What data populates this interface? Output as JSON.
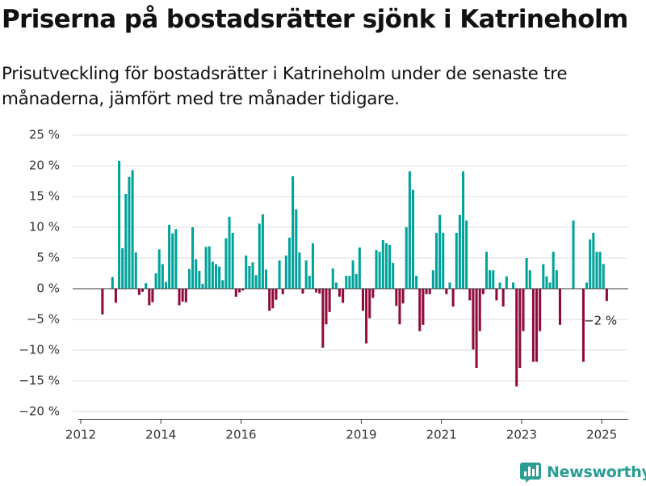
{
  "page": {
    "title": "Priserna på bostadsrätter sjönk i Katrineholm",
    "subtitle": "Prisutveckling för bostadsrätter i Katrineholm under de senaste tre månaderna, jämfört med tre månader tidigare."
  },
  "brand": {
    "name": "Newsworthy",
    "icon": "bar-chart-logo-icon"
  },
  "colors": {
    "positive": "#00a39a",
    "negative": "#8f0a3d",
    "grid": "#dddddd",
    "axis": "#333333"
  },
  "chart_data": {
    "type": "bar",
    "title": "",
    "xlabel": "",
    "ylabel": "",
    "ylim": [
      -20,
      25
    ],
    "y_ticks": [
      25,
      20,
      15,
      10,
      5,
      0,
      -5,
      -10,
      -15,
      -20
    ],
    "y_tick_labels": [
      "25 %",
      "20 %",
      "15 %",
      "10 %",
      "5 %",
      "0 %",
      "−5 %",
      "−10 %",
      "−15 %",
      "−20 %"
    ],
    "x_ticks": [
      "2012",
      "2014",
      "2016",
      "2019",
      "2021",
      "2023",
      "2025"
    ],
    "x_tick_years": [
      2012,
      2014,
      2016,
      2019,
      2021,
      2023,
      2025
    ],
    "x_range": [
      "2012-01",
      "2025-07"
    ],
    "grid": true,
    "annotation": "−2 %",
    "series": [
      {
        "values": [
          [
            "2012-07",
            -4.2
          ],
          [
            "2012-10",
            1.9
          ],
          [
            "2012-11",
            -2.3
          ],
          [
            "2012-12",
            20.8
          ],
          [
            "2013-01",
            6.6
          ],
          [
            "2013-02",
            15.4
          ],
          [
            "2013-03",
            18.2
          ],
          [
            "2013-04",
            19.3
          ],
          [
            "2013-05",
            5.9
          ],
          [
            "2013-06",
            -1.0
          ],
          [
            "2013-07",
            -0.5
          ],
          [
            "2013-08",
            0.9
          ],
          [
            "2013-09",
            -2.7
          ],
          [
            "2013-10",
            -2.2
          ],
          [
            "2013-11",
            2.5
          ],
          [
            "2013-12",
            6.4
          ],
          [
            "2014-01",
            4.0
          ],
          [
            "2014-02",
            1.1
          ],
          [
            "2014-03",
            10.4
          ],
          [
            "2014-04",
            9.0
          ],
          [
            "2014-05",
            9.7
          ],
          [
            "2014-06",
            -2.7
          ],
          [
            "2014-07",
            -2.1
          ],
          [
            "2014-08",
            -2.2
          ],
          [
            "2014-09",
            3.2
          ],
          [
            "2014-10",
            10.0
          ],
          [
            "2014-11",
            4.8
          ],
          [
            "2014-12",
            2.9
          ],
          [
            "2015-01",
            0.8
          ],
          [
            "2015-02",
            6.8
          ],
          [
            "2015-03",
            6.9
          ],
          [
            "2015-04",
            4.4
          ],
          [
            "2015-05",
            4.0
          ],
          [
            "2015-06",
            3.6
          ],
          [
            "2015-07",
            1.4
          ],
          [
            "2015-08",
            8.2
          ],
          [
            "2015-09",
            11.7
          ],
          [
            "2015-10",
            9.1
          ],
          [
            "2015-11",
            -1.3
          ],
          [
            "2015-12",
            -0.6
          ],
          [
            "2016-01",
            -0.3
          ],
          [
            "2016-02",
            5.4
          ],
          [
            "2016-03",
            3.7
          ],
          [
            "2016-04",
            4.3
          ],
          [
            "2016-05",
            2.2
          ],
          [
            "2016-06",
            10.6
          ],
          [
            "2016-07",
            12.1
          ],
          [
            "2016-08",
            3.1
          ],
          [
            "2016-09",
            -3.6
          ],
          [
            "2016-10",
            -3.2
          ],
          [
            "2016-11",
            -1.8
          ],
          [
            "2016-12",
            4.6
          ],
          [
            "2017-01",
            -0.9
          ],
          [
            "2017-02",
            5.4
          ],
          [
            "2017-03",
            8.3
          ],
          [
            "2017-04",
            18.3
          ],
          [
            "2017-05",
            12.9
          ],
          [
            "2017-06",
            5.9
          ],
          [
            "2017-07",
            -0.8
          ],
          [
            "2017-08",
            4.6
          ],
          [
            "2017-09",
            2.1
          ],
          [
            "2017-10",
            7.4
          ],
          [
            "2017-11",
            -0.6
          ],
          [
            "2017-12",
            -0.8
          ],
          [
            "2018-01",
            -9.6
          ],
          [
            "2018-02",
            -5.8
          ],
          [
            "2018-03",
            -3.8
          ],
          [
            "2018-04",
            3.3
          ],
          [
            "2018-05",
            1.0
          ],
          [
            "2018-06",
            -1.3
          ],
          [
            "2018-07",
            -2.3
          ],
          [
            "2018-08",
            2.1
          ],
          [
            "2018-09",
            2.1
          ],
          [
            "2018-10",
            4.6
          ],
          [
            "2018-11",
            2.4
          ],
          [
            "2018-12",
            6.7
          ],
          [
            "2019-01",
            -3.6
          ],
          [
            "2019-02",
            -8.9
          ],
          [
            "2019-03",
            -4.8
          ],
          [
            "2019-04",
            -1.5
          ],
          [
            "2019-05",
            6.3
          ],
          [
            "2019-06",
            6.0
          ],
          [
            "2019-07",
            7.9
          ],
          [
            "2019-08",
            7.4
          ],
          [
            "2019-09",
            7.1
          ],
          [
            "2019-10",
            4.2
          ],
          [
            "2019-11",
            -2.8
          ],
          [
            "2019-12",
            -5.8
          ],
          [
            "2020-01",
            -2.4
          ],
          [
            "2020-02",
            10.0
          ],
          [
            "2020-03",
            19.1
          ],
          [
            "2020-04",
            16.1
          ],
          [
            "2020-05",
            2.1
          ],
          [
            "2020-06",
            -6.9
          ],
          [
            "2020-07",
            -5.9
          ],
          [
            "2020-08",
            -0.9
          ],
          [
            "2020-09",
            -0.9
          ],
          [
            "2020-10",
            3.0
          ],
          [
            "2020-11",
            9.1
          ],
          [
            "2020-12",
            12.0
          ],
          [
            "2021-01",
            9.1
          ],
          [
            "2021-02",
            -0.9
          ],
          [
            "2021-03",
            1.0
          ],
          [
            "2021-04",
            -2.9
          ],
          [
            "2021-05",
            9.1
          ],
          [
            "2021-06",
            12.0
          ],
          [
            "2021-07",
            19.1
          ],
          [
            "2021-08",
            11.1
          ],
          [
            "2021-09",
            -1.9
          ],
          [
            "2021-10",
            -9.9
          ],
          [
            "2021-11",
            -12.9
          ],
          [
            "2021-12",
            -6.9
          ],
          [
            "2022-01",
            -0.9
          ],
          [
            "2022-02",
            6.0
          ],
          [
            "2022-03",
            3.0
          ],
          [
            "2022-04",
            3.0
          ],
          [
            "2022-05",
            -1.9
          ],
          [
            "2022-06",
            1.0
          ],
          [
            "2022-07",
            -2.9
          ],
          [
            "2022-08",
            2.0
          ],
          [
            "2022-10",
            1.0
          ],
          [
            "2022-11",
            -15.9
          ],
          [
            "2022-12",
            -12.9
          ],
          [
            "2023-01",
            -6.9
          ],
          [
            "2023-02",
            5.0
          ],
          [
            "2023-03",
            3.0
          ],
          [
            "2023-04",
            -11.9
          ],
          [
            "2023-05",
            -11.9
          ],
          [
            "2023-06",
            -6.9
          ],
          [
            "2023-07",
            4.0
          ],
          [
            "2023-08",
            2.0
          ],
          [
            "2023-09",
            1.0
          ],
          [
            "2023-10",
            6.0
          ],
          [
            "2023-11",
            3.0
          ],
          [
            "2023-12",
            -5.9
          ],
          [
            "2024-04",
            11.1
          ],
          [
            "2024-07",
            -11.9
          ],
          [
            "2024-08",
            1.0
          ],
          [
            "2024-09",
            8.0
          ],
          [
            "2024-10",
            9.1
          ],
          [
            "2024-11",
            6.0
          ],
          [
            "2024-12",
            6.0
          ],
          [
            "2025-01",
            4.0
          ],
          [
            "2025-02",
            -2.0
          ]
        ]
      }
    ]
  }
}
